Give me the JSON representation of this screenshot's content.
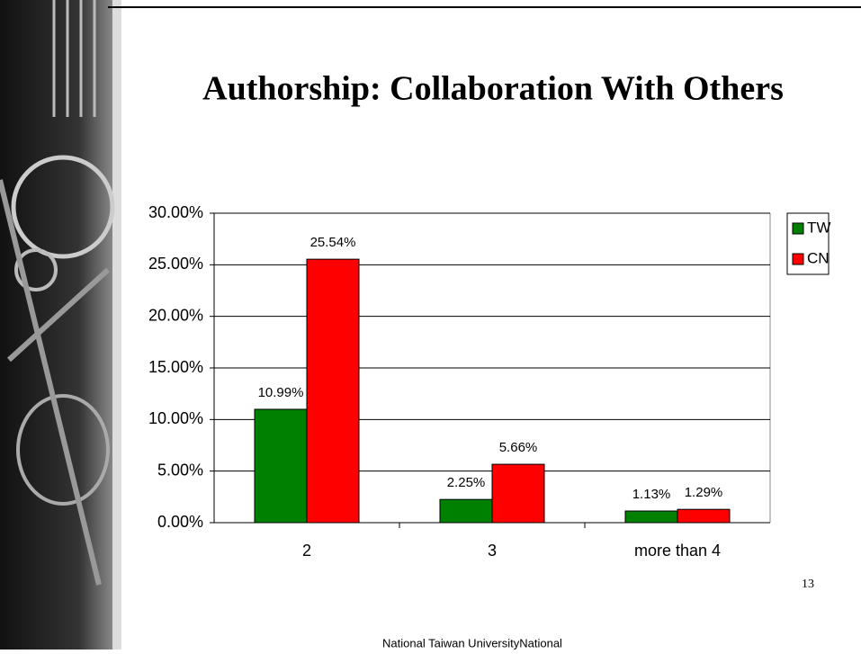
{
  "chart_data": {
    "type": "bar",
    "title": "Authorship: Collaboration With Others",
    "categories": [
      "2",
      "3",
      "more than 4"
    ],
    "series": [
      {
        "name": "TW",
        "color": "#008000",
        "values": [
          10.99,
          2.25,
          1.13
        ],
        "value_labels": [
          "10.99%",
          "2.25%",
          "1.13%"
        ]
      },
      {
        "name": "CN",
        "color": "#ff0000",
        "values": [
          25.54,
          5.66,
          1.29
        ],
        "value_labels": [
          "25.54%",
          "5.66%",
          "1.29%"
        ]
      }
    ],
    "ylim": [
      0,
      30
    ],
    "yticks": [
      {
        "value": 0,
        "label": "0.00%"
      },
      {
        "value": 5,
        "label": "5.00%"
      },
      {
        "value": 10,
        "label": "10.00%"
      },
      {
        "value": 15,
        "label": "15.00%"
      },
      {
        "value": 20,
        "label": "20.00%"
      },
      {
        "value": 25,
        "label": "25.00%"
      },
      {
        "value": 30,
        "label": "30.00%"
      }
    ],
    "grid": true,
    "legend": "right"
  },
  "slide_number": "13",
  "footer": "National Taiwan UniversityNational"
}
